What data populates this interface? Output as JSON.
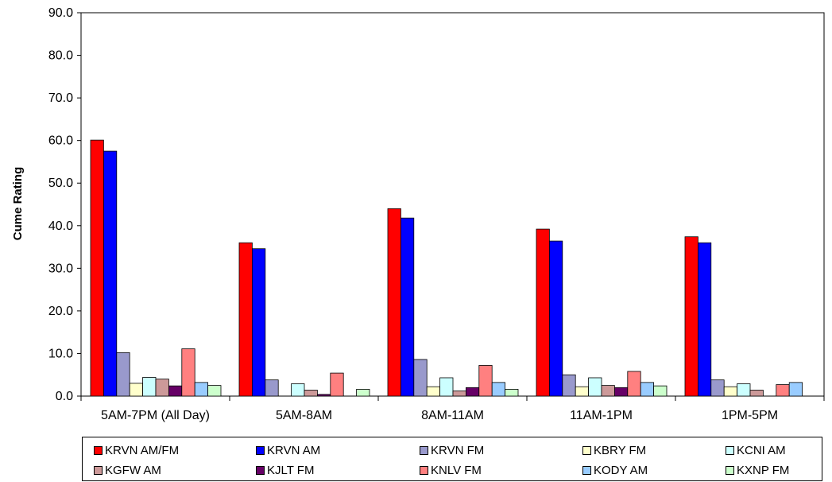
{
  "chart_data": {
    "type": "bar",
    "ylabel": "Cume Rating",
    "xlabel": "",
    "ylim": [
      0,
      90
    ],
    "yticks": [
      "0.0",
      "10.0",
      "20.0",
      "30.0",
      "40.0",
      "50.0",
      "60.0",
      "70.0",
      "80.0",
      "90.0"
    ],
    "categories": [
      "5AM-7PM (All Day)",
      "5AM-8AM",
      "8AM-11AM",
      "11AM-1PM",
      "1PM-5PM"
    ],
    "legend_position": "bottom",
    "grid": false,
    "series": [
      {
        "name": "KRVN AM/FM",
        "color": "#ff0000",
        "values": [
          60.1,
          36.0,
          44.0,
          39.2,
          37.4
        ]
      },
      {
        "name": "KRVN AM",
        "color": "#0000ff",
        "values": [
          57.5,
          34.6,
          41.8,
          36.4,
          36.0
        ]
      },
      {
        "name": "KRVN FM",
        "color": "#9999cc",
        "values": [
          10.2,
          3.8,
          8.6,
          5.0,
          3.8
        ]
      },
      {
        "name": "KBRY FM",
        "color": "#ffffcc",
        "values": [
          3.0,
          0,
          2.2,
          2.2,
          2.2
        ]
      },
      {
        "name": "KCNI AM",
        "color": "#ccffff",
        "values": [
          4.4,
          2.9,
          4.3,
          4.3,
          2.9
        ]
      },
      {
        "name": "KGFW AM",
        "color": "#cc9999",
        "values": [
          4.0,
          1.4,
          1.2,
          2.5,
          1.4
        ]
      },
      {
        "name": "KJLT FM",
        "color": "#660066",
        "values": [
          2.4,
          0.4,
          2.0,
          2.0,
          0
        ]
      },
      {
        "name": "KNLV FM",
        "color": "#ff8080",
        "values": [
          11.1,
          5.4,
          7.2,
          5.8,
          2.7
        ]
      },
      {
        "name": "KODY AM",
        "color": "#99ccff",
        "values": [
          3.2,
          0,
          3.2,
          3.2,
          3.2
        ]
      },
      {
        "name": "KXNP FM",
        "color": "#ccffcc",
        "values": [
          2.5,
          1.6,
          1.6,
          2.4,
          0
        ]
      }
    ]
  }
}
